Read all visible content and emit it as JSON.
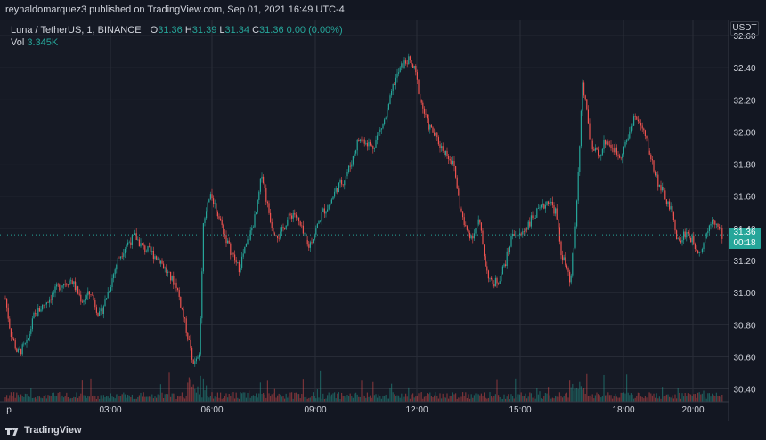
{
  "header": {
    "publisher_line": "reynaldomarquez3 published on TradingView.com, Sep 01, 2021 16:49 UTC-4"
  },
  "legend": {
    "symbol": "Luna / TetherUS, 1, BINANCE",
    "o_key": "O",
    "o_val": "31.36",
    "h_key": "H",
    "h_val": "31.39",
    "l_key": "L",
    "l_val": "31.34",
    "c_key": "C",
    "c_val": "31.36",
    "change": "0.00 (0.00%)",
    "vol_key": "Vol",
    "vol_val": "3.345K"
  },
  "price_axis": {
    "unit": "USDT",
    "last_price": "31.36",
    "countdown": "00:18"
  },
  "footer": {
    "brand": "TradingView"
  },
  "colors": {
    "up": "#26a69a",
    "down": "#ef5350",
    "bg": "#161a25",
    "grid": "#2a2e39"
  },
  "chart_data": {
    "type": "candlestick",
    "y_ticks": [
      "32.60",
      "32.40",
      "32.20",
      "32.00",
      "31.80",
      "31.60",
      "31.40",
      "31.20",
      "31.00",
      "30.80",
      "30.60",
      "30.40"
    ],
    "ylim": [
      30.32,
      32.7
    ],
    "x_ticks": [
      "p",
      "03:00",
      "06:00",
      "09:00",
      "12:00",
      "15:00",
      "18:00",
      "20:00"
    ],
    "price_path": [
      [
        0,
        31.45
      ],
      [
        5,
        31.0
      ],
      [
        12,
        30.75
      ],
      [
        20,
        30.62
      ],
      [
        30,
        30.68
      ],
      [
        38,
        30.85
      ],
      [
        48,
        30.92
      ],
      [
        58,
        30.98
      ],
      [
        68,
        31.05
      ],
      [
        80,
        31.08
      ],
      [
        92,
        30.95
      ],
      [
        102,
        31.0
      ],
      [
        112,
        30.85
      ],
      [
        124,
        31.05
      ],
      [
        132,
        31.2
      ],
      [
        142,
        31.3
      ],
      [
        152,
        31.35
      ],
      [
        160,
        31.28
      ],
      [
        170,
        31.25
      ],
      [
        180,
        31.2
      ],
      [
        190,
        31.1
      ],
      [
        198,
        31.05
      ],
      [
        206,
        30.85
      ],
      [
        212,
        30.7
      ],
      [
        218,
        30.55
      ],
      [
        224,
        30.6
      ],
      [
        228,
        31.4
      ],
      [
        232,
        31.55
      ],
      [
        238,
        31.6
      ],
      [
        244,
        31.5
      ],
      [
        250,
        31.4
      ],
      [
        256,
        31.3
      ],
      [
        262,
        31.22
      ],
      [
        268,
        31.15
      ],
      [
        274,
        31.25
      ],
      [
        280,
        31.35
      ],
      [
        288,
        31.5
      ],
      [
        294,
        31.75
      ],
      [
        300,
        31.55
      ],
      [
        306,
        31.4
      ],
      [
        314,
        31.35
      ],
      [
        322,
        31.45
      ],
      [
        330,
        31.5
      ],
      [
        338,
        31.4
      ],
      [
        346,
        31.28
      ],
      [
        354,
        31.38
      ],
      [
        362,
        31.5
      ],
      [
        370,
        31.55
      ],
      [
        378,
        31.65
      ],
      [
        386,
        31.7
      ],
      [
        394,
        31.8
      ],
      [
        402,
        31.95
      ],
      [
        410,
        31.95
      ],
      [
        418,
        31.9
      ],
      [
        426,
        32.0
      ],
      [
        434,
        32.1
      ],
      [
        442,
        32.3
      ],
      [
        450,
        32.4
      ],
      [
        458,
        32.45
      ],
      [
        466,
        32.38
      ],
      [
        472,
        32.2
      ],
      [
        480,
        32.05
      ],
      [
        488,
        31.98
      ],
      [
        496,
        31.9
      ],
      [
        504,
        31.85
      ],
      [
        510,
        31.78
      ],
      [
        516,
        31.55
      ],
      [
        522,
        31.4
      ],
      [
        530,
        31.35
      ],
      [
        538,
        31.45
      ],
      [
        546,
        31.15
      ],
      [
        552,
        31.05
      ],
      [
        560,
        31.08
      ],
      [
        568,
        31.2
      ],
      [
        576,
        31.38
      ],
      [
        584,
        31.35
      ],
      [
        592,
        31.42
      ],
      [
        600,
        31.48
      ],
      [
        608,
        31.52
      ],
      [
        616,
        31.58
      ],
      [
        624,
        31.5
      ],
      [
        630,
        31.25
      ],
      [
        636,
        31.15
      ],
      [
        640,
        31.05
      ],
      [
        646,
        31.4
      ],
      [
        650,
        31.85
      ],
      [
        654,
        32.3
      ],
      [
        658,
        32.15
      ],
      [
        664,
        31.9
      ],
      [
        672,
        31.85
      ],
      [
        680,
        31.95
      ],
      [
        688,
        31.9
      ],
      [
        696,
        31.85
      ],
      [
        704,
        31.95
      ],
      [
        712,
        32.1
      ],
      [
        718,
        32.05
      ],
      [
        724,
        31.98
      ],
      [
        730,
        31.85
      ],
      [
        738,
        31.7
      ],
      [
        746,
        31.6
      ],
      [
        754,
        31.5
      ],
      [
        762,
        31.3
      ],
      [
        770,
        31.38
      ],
      [
        778,
        31.32
      ],
      [
        786,
        31.25
      ],
      [
        794,
        31.38
      ],
      [
        800,
        31.48
      ],
      [
        806,
        31.4
      ],
      [
        811,
        31.36
      ]
    ],
    "volume_scale_note": ""
  }
}
